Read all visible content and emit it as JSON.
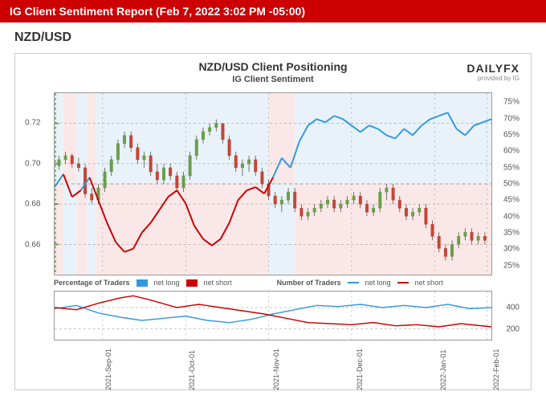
{
  "header": {
    "title": "IG Client Sentiment Report (Feb 7, 2022 3:02 PM -05:00)"
  },
  "pair": "NZD/USD",
  "chart": {
    "title": "NZD/USD Client Positioning",
    "subtitle": "IG Client Sentiment",
    "brand_name": "DAILYFX",
    "brand_sub": "provided by IG",
    "main": {
      "left_axis": {
        "ticks": [
          0.66,
          0.68,
          0.7,
          0.72
        ],
        "labels": [
          "0.66",
          "0.68",
          "0.70",
          "0.72"
        ],
        "range": [
          0.645,
          0.735
        ]
      },
      "right_axis": {
        "ticks": [
          25,
          30,
          35,
          40,
          45,
          50,
          55,
          60,
          65,
          70,
          75
        ],
        "labels": [
          "25%",
          "30%",
          "35%",
          "40%",
          "45%",
          "50%",
          "55%",
          "60%",
          "65%",
          "70%",
          "75%"
        ],
        "range": [
          22,
          78
        ]
      },
      "zones": [
        {
          "start": 0,
          "end": 0.02,
          "above50": false
        },
        {
          "start": 0.02,
          "end": 0.05,
          "above50": true
        },
        {
          "start": 0.05,
          "end": 0.075,
          "above50": false
        },
        {
          "start": 0.075,
          "end": 0.095,
          "above50": true
        },
        {
          "start": 0.095,
          "end": 0.49,
          "above50": false
        },
        {
          "start": 0.49,
          "end": 0.55,
          "above50": true
        },
        {
          "start": 0.55,
          "end": 1.0,
          "above50": false
        }
      ],
      "sentiment_line": {
        "color": "#cc0000",
        "secondary_color": "#3399dd",
        "width": 2,
        "points": [
          [
            0.0,
            49
          ],
          [
            0.02,
            53
          ],
          [
            0.04,
            46
          ],
          [
            0.06,
            48
          ],
          [
            0.08,
            52
          ],
          [
            0.1,
            45
          ],
          [
            0.12,
            38
          ],
          [
            0.14,
            32
          ],
          [
            0.16,
            29
          ],
          [
            0.18,
            30
          ],
          [
            0.2,
            35
          ],
          [
            0.22,
            38
          ],
          [
            0.24,
            42
          ],
          [
            0.26,
            46
          ],
          [
            0.28,
            48
          ],
          [
            0.3,
            44
          ],
          [
            0.32,
            37
          ],
          [
            0.34,
            33
          ],
          [
            0.36,
            31
          ],
          [
            0.38,
            33
          ],
          [
            0.4,
            38
          ],
          [
            0.42,
            45
          ],
          [
            0.44,
            48
          ],
          [
            0.46,
            49
          ],
          [
            0.48,
            47
          ],
          [
            0.5,
            52
          ],
          [
            0.52,
            58
          ],
          [
            0.54,
            55
          ],
          [
            0.56,
            63
          ],
          [
            0.58,
            68
          ],
          [
            0.6,
            70
          ],
          [
            0.62,
            69
          ],
          [
            0.64,
            71
          ],
          [
            0.66,
            70
          ],
          [
            0.68,
            68
          ],
          [
            0.7,
            66
          ],
          [
            0.72,
            68
          ],
          [
            0.74,
            67
          ],
          [
            0.76,
            65
          ],
          [
            0.78,
            64
          ],
          [
            0.8,
            67
          ],
          [
            0.82,
            65
          ],
          [
            0.84,
            68
          ],
          [
            0.86,
            70
          ],
          [
            0.88,
            71
          ],
          [
            0.9,
            72
          ],
          [
            0.92,
            67
          ],
          [
            0.94,
            65
          ],
          [
            0.96,
            68
          ],
          [
            0.98,
            69
          ],
          [
            1.0,
            70
          ]
        ]
      },
      "candlesticks": {
        "up_color": "#6a9e4c",
        "down_color": "#c44536",
        "wick_color": "#555555",
        "data": [
          [
            0.01,
            0.699,
            0.704,
            0.697,
            0.702
          ],
          [
            0.025,
            0.702,
            0.706,
            0.7,
            0.704
          ],
          [
            0.04,
            0.704,
            0.705,
            0.698,
            0.7
          ],
          [
            0.055,
            0.7,
            0.703,
            0.696,
            0.698
          ],
          [
            0.07,
            0.698,
            0.7,
            0.683,
            0.685
          ],
          [
            0.085,
            0.685,
            0.688,
            0.68,
            0.682
          ],
          [
            0.1,
            0.682,
            0.69,
            0.68,
            0.688
          ],
          [
            0.115,
            0.688,
            0.698,
            0.686,
            0.696
          ],
          [
            0.13,
            0.696,
            0.704,
            0.694,
            0.702
          ],
          [
            0.145,
            0.702,
            0.712,
            0.7,
            0.71
          ],
          [
            0.16,
            0.71,
            0.716,
            0.708,
            0.714
          ],
          [
            0.175,
            0.714,
            0.716,
            0.706,
            0.708
          ],
          [
            0.19,
            0.708,
            0.71,
            0.7,
            0.702
          ],
          [
            0.205,
            0.702,
            0.706,
            0.698,
            0.704
          ],
          [
            0.22,
            0.704,
            0.706,
            0.694,
            0.696
          ],
          [
            0.235,
            0.696,
            0.7,
            0.69,
            0.692
          ],
          [
            0.25,
            0.692,
            0.7,
            0.69,
            0.698
          ],
          [
            0.265,
            0.698,
            0.7,
            0.692,
            0.694
          ],
          [
            0.28,
            0.694,
            0.696,
            0.686,
            0.688
          ],
          [
            0.295,
            0.688,
            0.696,
            0.686,
            0.694
          ],
          [
            0.31,
            0.694,
            0.706,
            0.692,
            0.704
          ],
          [
            0.325,
            0.704,
            0.714,
            0.702,
            0.712
          ],
          [
            0.34,
            0.712,
            0.718,
            0.71,
            0.716
          ],
          [
            0.355,
            0.716,
            0.72,
            0.714,
            0.718
          ],
          [
            0.37,
            0.718,
            0.722,
            0.716,
            0.72
          ],
          [
            0.385,
            0.72,
            0.72,
            0.71,
            0.712
          ],
          [
            0.4,
            0.712,
            0.714,
            0.702,
            0.704
          ],
          [
            0.415,
            0.704,
            0.706,
            0.696,
            0.698
          ],
          [
            0.43,
            0.698,
            0.702,
            0.694,
            0.7
          ],
          [
            0.445,
            0.7,
            0.704,
            0.696,
            0.702
          ],
          [
            0.46,
            0.702,
            0.704,
            0.694,
            0.696
          ],
          [
            0.475,
            0.696,
            0.698,
            0.688,
            0.69
          ],
          [
            0.49,
            0.69,
            0.692,
            0.682,
            0.684
          ],
          [
            0.505,
            0.684,
            0.686,
            0.678,
            0.68
          ],
          [
            0.52,
            0.68,
            0.684,
            0.676,
            0.682
          ],
          [
            0.535,
            0.682,
            0.688,
            0.68,
            0.686
          ],
          [
            0.55,
            0.686,
            0.688,
            0.676,
            0.678
          ],
          [
            0.565,
            0.678,
            0.68,
            0.672,
            0.674
          ],
          [
            0.58,
            0.674,
            0.678,
            0.672,
            0.676
          ],
          [
            0.595,
            0.676,
            0.68,
            0.674,
            0.678
          ],
          [
            0.61,
            0.678,
            0.682,
            0.676,
            0.68
          ],
          [
            0.625,
            0.68,
            0.684,
            0.678,
            0.682
          ],
          [
            0.64,
            0.682,
            0.684,
            0.676,
            0.678
          ],
          [
            0.655,
            0.678,
            0.682,
            0.676,
            0.68
          ],
          [
            0.67,
            0.68,
            0.684,
            0.678,
            0.682
          ],
          [
            0.685,
            0.682,
            0.686,
            0.68,
            0.684
          ],
          [
            0.7,
            0.684,
            0.686,
            0.678,
            0.68
          ],
          [
            0.715,
            0.68,
            0.682,
            0.674,
            0.676
          ],
          [
            0.73,
            0.676,
            0.68,
            0.674,
            0.678
          ],
          [
            0.745,
            0.678,
            0.688,
            0.676,
            0.686
          ],
          [
            0.76,
            0.686,
            0.69,
            0.682,
            0.688
          ],
          [
            0.775,
            0.688,
            0.69,
            0.68,
            0.682
          ],
          [
            0.79,
            0.682,
            0.684,
            0.676,
            0.678
          ],
          [
            0.805,
            0.678,
            0.68,
            0.672,
            0.674
          ],
          [
            0.82,
            0.674,
            0.678,
            0.672,
            0.676
          ],
          [
            0.835,
            0.676,
            0.68,
            0.674,
            0.678
          ],
          [
            0.85,
            0.678,
            0.68,
            0.668,
            0.67
          ],
          [
            0.865,
            0.67,
            0.672,
            0.662,
            0.664
          ],
          [
            0.88,
            0.664,
            0.666,
            0.656,
            0.658
          ],
          [
            0.895,
            0.658,
            0.66,
            0.652,
            0.654
          ],
          [
            0.91,
            0.654,
            0.662,
            0.652,
            0.66
          ],
          [
            0.925,
            0.66,
            0.666,
            0.658,
            0.664
          ],
          [
            0.94,
            0.664,
            0.668,
            0.662,
            0.666
          ],
          [
            0.955,
            0.666,
            0.668,
            0.66,
            0.662
          ],
          [
            0.97,
            0.662,
            0.666,
            0.66,
            0.664
          ],
          [
            0.985,
            0.664,
            0.666,
            0.66,
            0.662
          ]
        ]
      }
    },
    "lower": {
      "right_axis": {
        "ticks": [
          200,
          400
        ],
        "labels": [
          "200",
          "400"
        ],
        "range": [
          100,
          550
        ]
      },
      "net_long": {
        "color": "#3399dd",
        "width": 1.5,
        "points": [
          [
            0.0,
            390
          ],
          [
            0.05,
            420
          ],
          [
            0.1,
            350
          ],
          [
            0.15,
            310
          ],
          [
            0.2,
            280
          ],
          [
            0.25,
            300
          ],
          [
            0.3,
            320
          ],
          [
            0.35,
            280
          ],
          [
            0.4,
            260
          ],
          [
            0.45,
            290
          ],
          [
            0.5,
            340
          ],
          [
            0.55,
            380
          ],
          [
            0.6,
            420
          ],
          [
            0.65,
            410
          ],
          [
            0.7,
            430
          ],
          [
            0.75,
            400
          ],
          [
            0.8,
            420
          ],
          [
            0.85,
            400
          ],
          [
            0.9,
            430
          ],
          [
            0.95,
            390
          ],
          [
            1.0,
            400
          ]
        ]
      },
      "net_short": {
        "color": "#cc0000",
        "width": 1.5,
        "points": [
          [
            0.0,
            400
          ],
          [
            0.05,
            380
          ],
          [
            0.1,
            440
          ],
          [
            0.15,
            490
          ],
          [
            0.18,
            510
          ],
          [
            0.22,
            470
          ],
          [
            0.28,
            400
          ],
          [
            0.33,
            430
          ],
          [
            0.38,
            400
          ],
          [
            0.43,
            370
          ],
          [
            0.48,
            340
          ],
          [
            0.53,
            300
          ],
          [
            0.58,
            260
          ],
          [
            0.63,
            250
          ],
          [
            0.68,
            240
          ],
          [
            0.73,
            260
          ],
          [
            0.78,
            230
          ],
          [
            0.83,
            240
          ],
          [
            0.88,
            220
          ],
          [
            0.93,
            250
          ],
          [
            1.0,
            220
          ]
        ]
      }
    },
    "x_axis": {
      "ticks": [
        0.11,
        0.3,
        0.49,
        0.68,
        0.87,
        0.99
      ],
      "labels": [
        "2021-Sep-01",
        "2021-Oct-01",
        "2021-Nov-01",
        "2021-Dec-01",
        "2022-Jan-01",
        "2022-Feb-01"
      ]
    },
    "legend": {
      "pct_label": "Percentage of Traders",
      "num_label": "Number of Traders",
      "net_long": "net long",
      "net_short": "net short"
    },
    "colors": {
      "grid": "#888888",
      "bg_above50": "#e8f2f8",
      "bg_below50": "#fae8e8",
      "ytick_line": "#6a9e4c"
    }
  }
}
